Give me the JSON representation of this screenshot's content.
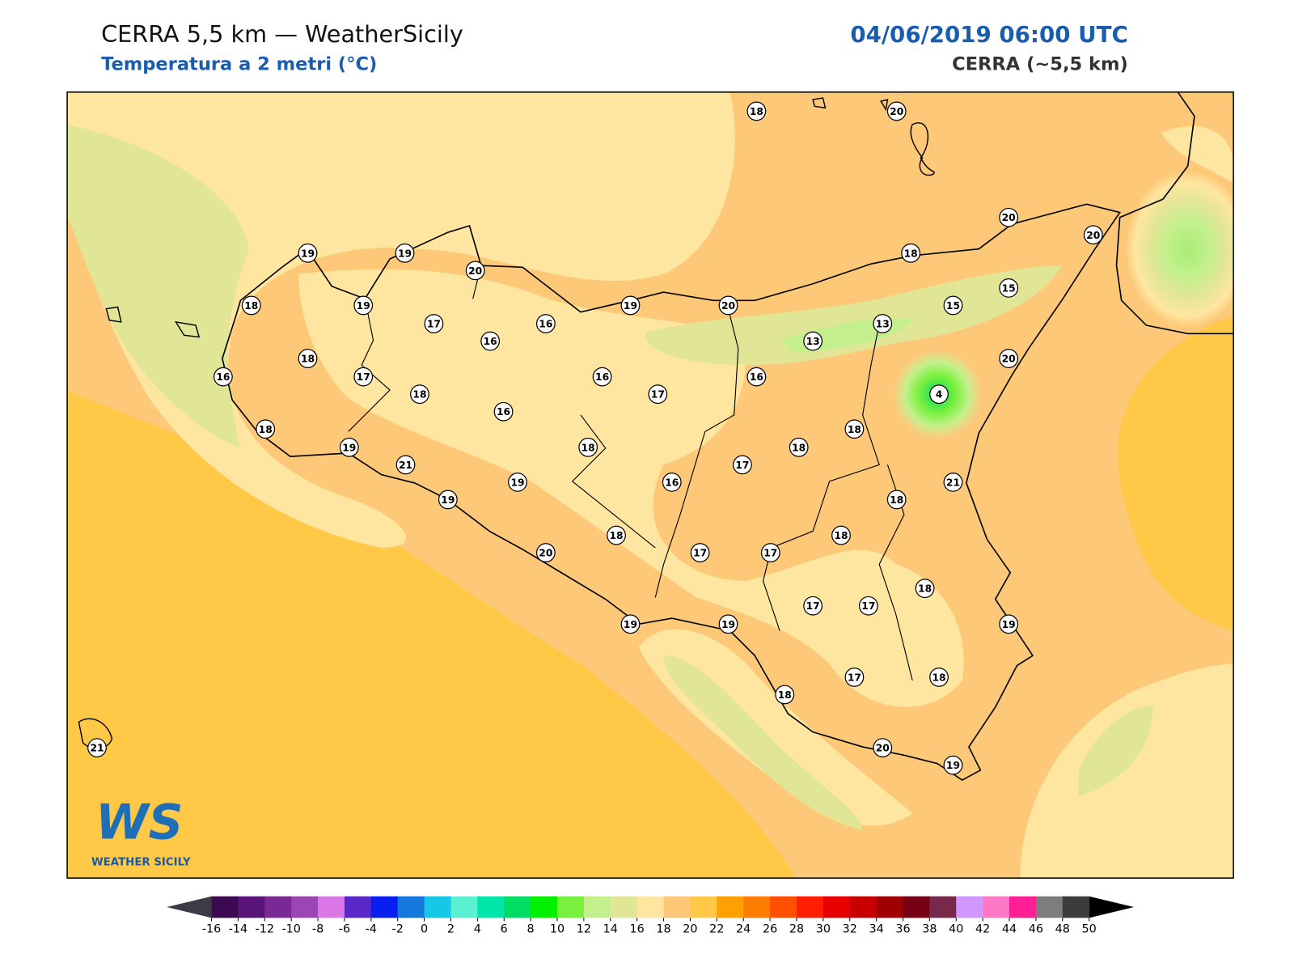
{
  "header": {
    "title": "CERRA 5,5 km — WeatherSicily",
    "subtitle": "Temperatura a 2 metri (°C)",
    "datetime": "04/06/2019 06:00 UTC",
    "model": "CERRA (~5,5 km)"
  },
  "stations": [
    18,
    20,
    20,
    20,
    19,
    19,
    20,
    18,
    15,
    18,
    19,
    19,
    20,
    15,
    17,
    16,
    13,
    16,
    13,
    18,
    20,
    16,
    17,
    16,
    16,
    4,
    18,
    17,
    16,
    18,
    18,
    19,
    18,
    18,
    21,
    17,
    21,
    19,
    16,
    19,
    18,
    18,
    18,
    20,
    17,
    17,
    18,
    17,
    17,
    19,
    19,
    19,
    17,
    18,
    18,
    20,
    19,
    21
  ],
  "logo": {
    "mark": "WS",
    "name": "WEATHER SICILY"
  },
  "colorbar": {
    "ticks": [
      -16,
      -14,
      -12,
      -10,
      -8,
      -6,
      -4,
      -2,
      0,
      2,
      4,
      6,
      8,
      10,
      12,
      14,
      16,
      18,
      20,
      22,
      24,
      26,
      28,
      30,
      32,
      34,
      36,
      38,
      40,
      42,
      44,
      46,
      48,
      50
    ],
    "colors": [
      "#3c0a50",
      "#5a1478",
      "#7a2896",
      "#9a46b4",
      "#dc78e6",
      "#5a28c8",
      "#0a1ef0",
      "#1478dc",
      "#14c8e6",
      "#5af0d2",
      "#00e6aa",
      "#00dc64",
      "#00f000",
      "#78f03c",
      "#c3f08c",
      "#e1e696",
      "#ffe6a0",
      "#fdc878",
      "#ffc846",
      "#ffa000",
      "#ff7d00",
      "#ff5000",
      "#ff1e00",
      "#e60000",
      "#c80000",
      "#a00000",
      "#780014",
      "#78284b",
      "#d296ff",
      "#ff78c8",
      "#ff1e96",
      "#7d7d7d",
      "#3c3c3c"
    ],
    "extend_colors": [
      "#3c3c46",
      "#000000"
    ]
  }
}
